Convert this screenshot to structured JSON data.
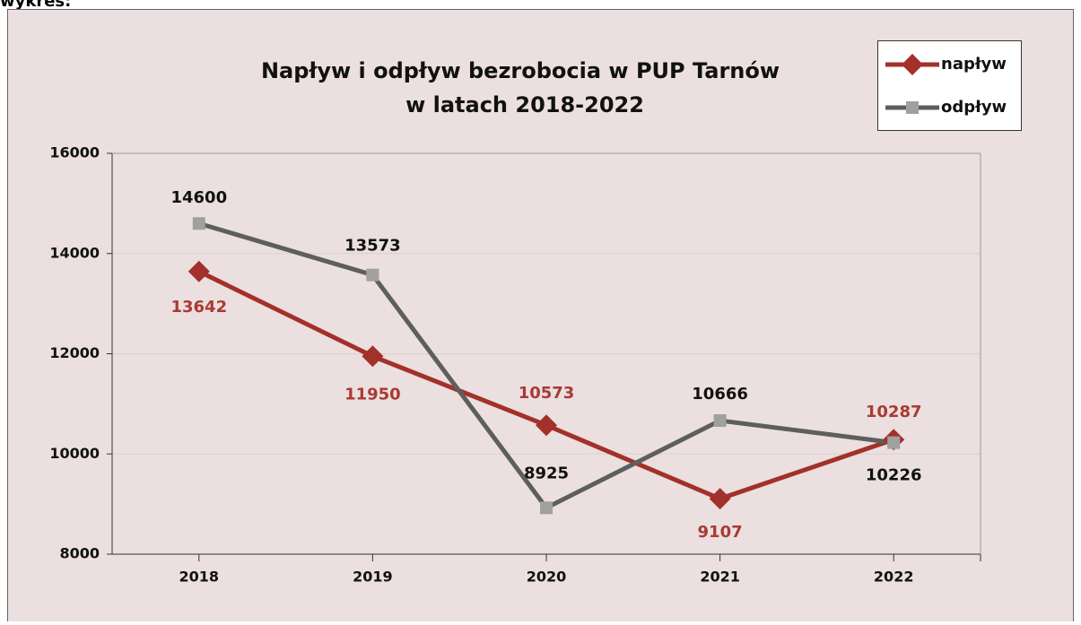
{
  "caption": "wykres:",
  "chart_data": {
    "type": "line",
    "title": "Napływ i odpływ bezrobocia w PUP Tarnów",
    "subtitle": "w latach 2018-2022",
    "categories": [
      "2018",
      "2019",
      "2020",
      "2021",
      "2022"
    ],
    "series": [
      {
        "name": "napływ",
        "color": "#a3302a",
        "values": [
          13642,
          11950,
          10573,
          9107,
          10287
        ]
      },
      {
        "name": "odpływ",
        "color": "#5e5e5e",
        "values": [
          14600,
          13573,
          8925,
          10666,
          10226
        ]
      }
    ],
    "ylim": [
      8000,
      16000
    ],
    "yticks": [
      8000,
      10000,
      12000,
      14000,
      16000
    ],
    "grid": true,
    "legend": "top-right"
  }
}
